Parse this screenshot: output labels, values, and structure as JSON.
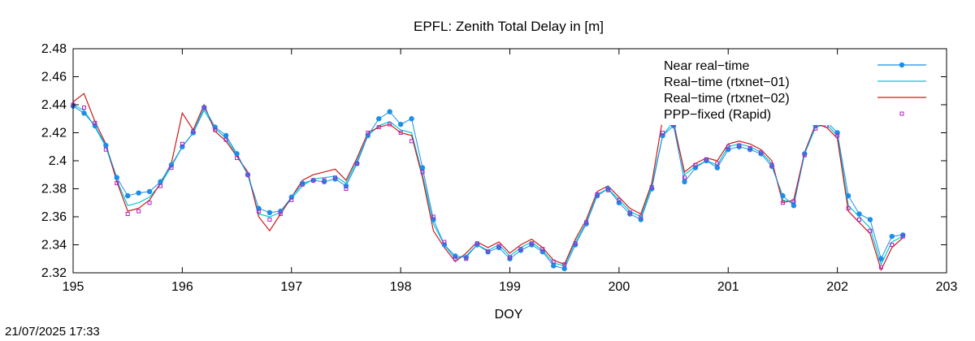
{
  "footer": {
    "timestamp": "21/07/2025 17:33"
  },
  "colors": {
    "near_realtime": "#1a8ee8",
    "rtxnet01": "#00c8d0",
    "rtxnet02": "#cc1a1a",
    "ppp_fixed": "#b020c0"
  },
  "chart_data": {
    "type": "line",
    "title": "EPFL: Zenith Total Delay in [m]",
    "xlabel": "DOY",
    "ylabel": "",
    "xlim": [
      195,
      203
    ],
    "ylim": [
      2.32,
      2.48
    ],
    "xticks": [
      "195",
      "196",
      "197",
      "198",
      "199",
      "200",
      "201",
      "202",
      "203"
    ],
    "yticks": [
      "2.32",
      "2.34",
      "2.36",
      "2.38",
      "2.4",
      "2.42",
      "2.44",
      "2.46",
      "2.48"
    ],
    "grid": false,
    "legend_position": "top-right",
    "series": [
      {
        "name": "Near real−time",
        "style": "line-points",
        "x": [
          195.0,
          195.1,
          195.2,
          195.3,
          195.4,
          195.5,
          195.6,
          195.7,
          195.8,
          195.9,
          196.0,
          196.1,
          196.2,
          196.3,
          196.4,
          196.5,
          196.6,
          196.7,
          196.8,
          196.9,
          197.0,
          197.1,
          197.2,
          197.3,
          197.4,
          197.5,
          197.6,
          197.7,
          197.8,
          197.9,
          198.0,
          198.1,
          198.2,
          198.3,
          198.4,
          198.5,
          198.6,
          198.7,
          198.8,
          198.9,
          199.0,
          199.1,
          199.2,
          199.3,
          199.4,
          199.5,
          199.6,
          199.7,
          199.8,
          199.9,
          200.0,
          200.1,
          200.2,
          200.3,
          200.4,
          200.5,
          200.6,
          200.7,
          200.8,
          200.9,
          201.0,
          201.1,
          201.2,
          201.3,
          201.4,
          201.5,
          201.6,
          201.7,
          201.8,
          201.9,
          202.0,
          202.1,
          202.2,
          202.3,
          202.4,
          202.5,
          202.6
        ],
        "y": [
          2.439,
          2.434,
          2.425,
          2.411,
          2.388,
          2.375,
          2.377,
          2.378,
          2.385,
          2.397,
          2.41,
          2.42,
          2.438,
          2.424,
          2.418,
          2.405,
          2.39,
          2.366,
          2.363,
          2.364,
          2.374,
          2.384,
          2.386,
          2.385,
          2.387,
          2.382,
          2.398,
          2.418,
          2.43,
          2.435,
          2.426,
          2.43,
          2.395,
          2.358,
          2.34,
          2.332,
          2.331,
          2.34,
          2.335,
          2.338,
          2.33,
          2.336,
          2.34,
          2.335,
          2.325,
          2.323,
          2.34,
          2.355,
          2.375,
          2.38,
          2.37,
          2.362,
          2.358,
          2.38,
          2.418,
          2.425,
          2.385,
          2.395,
          2.4,
          2.395,
          2.408,
          2.41,
          2.408,
          2.405,
          2.396,
          2.375,
          2.368,
          2.405,
          2.425,
          2.428,
          2.42,
          2.375,
          2.362,
          2.358,
          2.33,
          2.346,
          2.347
        ]
      },
      {
        "name": "Real−time (rtxnet−01)",
        "style": "line",
        "x": [
          195.0,
          195.1,
          195.2,
          195.3,
          195.4,
          195.5,
          195.6,
          195.7,
          195.8,
          195.9,
          196.0,
          196.1,
          196.2,
          196.3,
          196.4,
          196.5,
          196.6,
          196.7,
          196.8,
          196.9,
          197.0,
          197.1,
          197.2,
          197.3,
          197.4,
          197.5,
          197.6,
          197.7,
          197.8,
          197.9,
          198.0,
          198.1,
          198.2,
          198.3,
          198.4,
          198.5,
          198.6,
          198.7,
          198.8,
          198.9,
          199.0,
          199.1,
          199.2,
          199.3,
          199.4,
          199.5,
          199.6,
          199.7,
          199.8,
          199.9,
          200.0,
          200.1,
          200.2,
          200.3,
          200.4,
          200.5,
          200.6,
          200.7,
          200.8,
          200.9,
          201.0,
          201.1,
          201.2,
          201.3,
          201.4,
          201.5,
          201.6,
          201.7,
          201.8,
          201.9,
          202.0,
          202.1,
          202.2,
          202.3,
          202.4,
          202.5,
          202.6
        ],
        "y": [
          2.44,
          2.436,
          2.424,
          2.41,
          2.386,
          2.368,
          2.37,
          2.374,
          2.383,
          2.396,
          2.41,
          2.42,
          2.436,
          2.423,
          2.416,
          2.404,
          2.39,
          2.362,
          2.36,
          2.363,
          2.373,
          2.382,
          2.387,
          2.388,
          2.389,
          2.384,
          2.4,
          2.418,
          2.425,
          2.428,
          2.422,
          2.42,
          2.39,
          2.355,
          2.34,
          2.33,
          2.332,
          2.34,
          2.336,
          2.34,
          2.332,
          2.338,
          2.342,
          2.336,
          2.327,
          2.325,
          2.342,
          2.356,
          2.376,
          2.38,
          2.372,
          2.364,
          2.36,
          2.382,
          2.418,
          2.428,
          2.39,
          2.396,
          2.4,
          2.397,
          2.41,
          2.412,
          2.41,
          2.406,
          2.398,
          2.372,
          2.37,
          2.405,
          2.424,
          2.426,
          2.418,
          2.368,
          2.36,
          2.352,
          2.326,
          2.342,
          2.346
        ]
      },
      {
        "name": "Real−time (rtxnet−02)",
        "style": "line",
        "x": [
          195.0,
          195.1,
          195.2,
          195.3,
          195.4,
          195.5,
          195.6,
          195.7,
          195.8,
          195.9,
          196.0,
          196.1,
          196.2,
          196.3,
          196.4,
          196.5,
          196.6,
          196.7,
          196.8,
          196.9,
          197.0,
          197.1,
          197.2,
          197.3,
          197.4,
          197.5,
          197.6,
          197.7,
          197.8,
          197.9,
          198.0,
          198.1,
          198.2,
          198.3,
          198.4,
          198.5,
          198.6,
          198.7,
          198.8,
          198.9,
          199.0,
          199.1,
          199.2,
          199.3,
          199.4,
          199.5,
          199.6,
          199.7,
          199.8,
          199.9,
          200.0,
          200.1,
          200.2,
          200.3,
          200.4,
          200.5,
          200.6,
          200.7,
          200.8,
          200.9,
          201.0,
          201.1,
          201.2,
          201.3,
          201.4,
          201.5,
          201.6,
          201.7,
          201.8,
          201.9,
          202.0,
          202.1,
          202.2,
          202.3,
          202.4,
          202.5,
          202.6
        ],
        "y": [
          2.442,
          2.448,
          2.428,
          2.412,
          2.385,
          2.364,
          2.366,
          2.372,
          2.384,
          2.398,
          2.434,
          2.422,
          2.44,
          2.421,
          2.414,
          2.403,
          2.392,
          2.36,
          2.35,
          2.362,
          2.374,
          2.386,
          2.39,
          2.392,
          2.394,
          2.386,
          2.402,
          2.42,
          2.424,
          2.426,
          2.42,
          2.418,
          2.388,
          2.35,
          2.338,
          2.328,
          2.334,
          2.342,
          2.338,
          2.342,
          2.334,
          2.34,
          2.344,
          2.338,
          2.329,
          2.326,
          2.344,
          2.358,
          2.378,
          2.382,
          2.374,
          2.366,
          2.362,
          2.384,
          2.43,
          2.426,
          2.392,
          2.398,
          2.402,
          2.4,
          2.412,
          2.414,
          2.412,
          2.408,
          2.4,
          2.37,
          2.372,
          2.406,
          2.426,
          2.424,
          2.416,
          2.364,
          2.356,
          2.348,
          2.322,
          2.338,
          2.345
        ]
      },
      {
        "name": "PPP−fixed (Rapid)",
        "style": "points",
        "x": [
          195.0,
          195.1,
          195.2,
          195.3,
          195.4,
          195.5,
          195.6,
          195.7,
          195.8,
          195.9,
          196.0,
          196.1,
          196.2,
          196.3,
          196.4,
          196.5,
          196.6,
          196.7,
          196.8,
          196.9,
          197.0,
          197.1,
          197.2,
          197.3,
          197.4,
          197.5,
          197.6,
          197.7,
          197.8,
          197.9,
          198.0,
          198.1,
          198.2,
          198.3,
          198.4,
          198.5,
          198.6,
          198.7,
          198.8,
          198.9,
          199.0,
          199.1,
          199.2,
          199.3,
          199.4,
          199.5,
          199.6,
          199.7,
          199.8,
          199.9,
          200.0,
          200.1,
          200.2,
          200.3,
          200.4,
          200.5,
          200.6,
          200.7,
          200.8,
          200.9,
          201.0,
          201.1,
          201.2,
          201.3,
          201.4,
          201.5,
          201.6,
          201.7,
          201.8,
          201.9,
          202.0,
          202.1,
          202.2,
          202.3,
          202.4,
          202.5,
          202.6
        ],
        "y": [
          2.44,
          2.438,
          2.427,
          2.408,
          2.384,
          2.362,
          2.364,
          2.37,
          2.382,
          2.395,
          2.412,
          2.421,
          2.438,
          2.422,
          2.415,
          2.402,
          2.39,
          2.364,
          2.358,
          2.362,
          2.372,
          2.383,
          2.386,
          2.386,
          2.388,
          2.38,
          2.398,
          2.42,
          2.424,
          2.426,
          2.42,
          2.414,
          2.392,
          2.36,
          2.342,
          2.33,
          2.33,
          2.341,
          2.335,
          2.339,
          2.331,
          2.337,
          2.341,
          2.337,
          2.328,
          2.326,
          2.341,
          2.356,
          2.376,
          2.379,
          2.372,
          2.363,
          2.36,
          2.381,
          2.42,
          2.426,
          2.388,
          2.397,
          2.401,
          2.398,
          2.41,
          2.411,
          2.409,
          2.406,
          2.397,
          2.37,
          2.371,
          2.404,
          2.423,
          2.425,
          2.418,
          2.366,
          2.358,
          2.35,
          2.324,
          2.34,
          2.346
        ]
      }
    ]
  }
}
